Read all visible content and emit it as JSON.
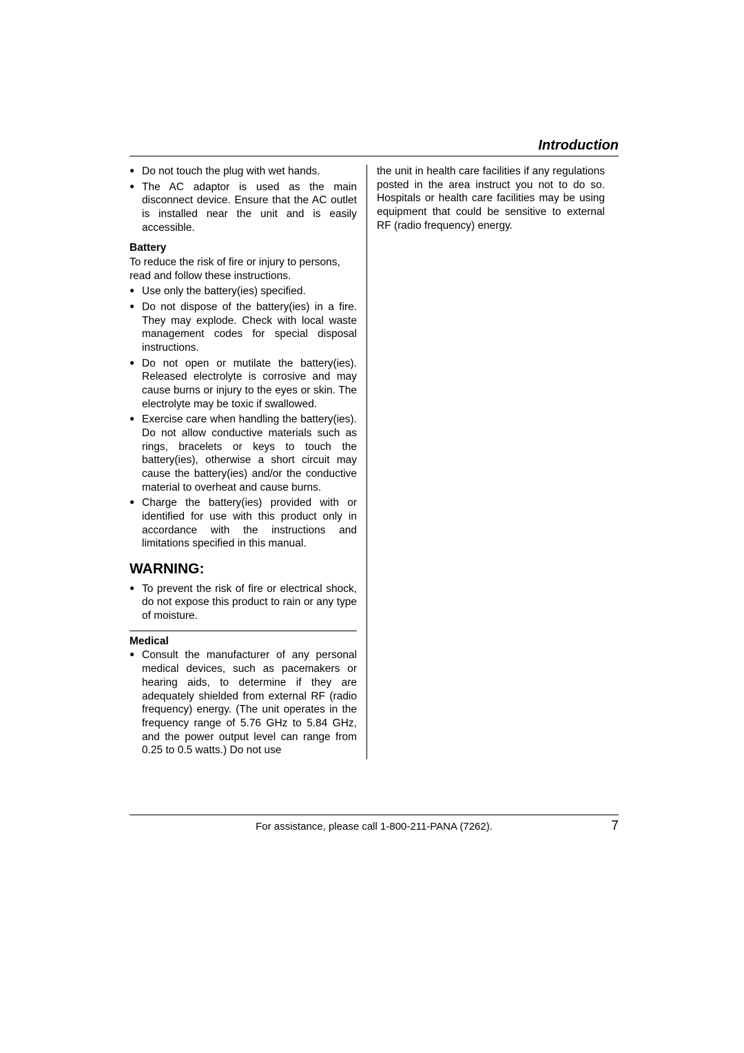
{
  "header": {
    "title": "Introduction"
  },
  "left": {
    "top_bullets": [
      "Do not touch the plug with wet hands.",
      "The AC adaptor is used as the main disconnect device. Ensure that the AC outlet is installed near the unit and is easily accessible."
    ],
    "battery": {
      "heading": "Battery",
      "lead": "To reduce the risk of fire or injury to persons, read and follow these instructions.",
      "bullets": [
        "Use only the battery(ies) specified.",
        "Do not dispose of the battery(ies) in a fire. They may explode. Check with local waste management codes for special disposal instructions.",
        "Do not open or mutilate the battery(ies). Released electrolyte is corrosive and may cause burns or injury to the eyes or skin. The electrolyte may be toxic if swallowed.",
        "Exercise care when handling the battery(ies). Do not allow conductive materials such as rings, bracelets or keys to touch the battery(ies), otherwise a short circuit may cause the battery(ies) and/or the conductive material to overheat and cause burns.",
        "Charge the battery(ies) provided with or identified for use with this product only in accordance with the instructions and limitations specified in this manual."
      ]
    },
    "warning": {
      "heading": "WARNING:",
      "bullets": [
        "To prevent the risk of fire or electrical shock, do not expose this product to rain or any type of moisture."
      ]
    },
    "medical": {
      "heading": "Medical",
      "bullets": [
        "Consult the manufacturer of any personal medical devices, such as pacemakers or hearing aids, to determine if they are adequately shielded from external RF (radio frequency) energy. (The unit operates in the frequency range of 5.76 GHz to 5.84 GHz, and the power output level can range from 0.25 to 0.5 watts.) Do not use"
      ]
    }
  },
  "right": {
    "continuation": "the unit in health care facilities if any regulations posted in the area instruct you not to do so. Hospitals or health care facilities may be using equipment that could be sensitive to external RF (radio frequency) energy."
  },
  "footer": {
    "text": "For assistance, please call 1-800-211-PANA (7262).",
    "page": "7"
  }
}
